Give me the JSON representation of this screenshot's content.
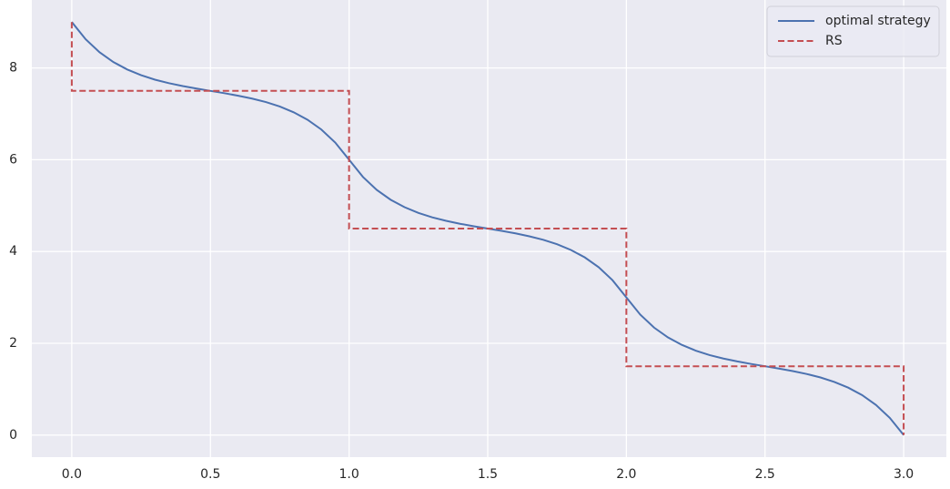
{
  "chart_data": {
    "type": "line",
    "xlim": [
      -0.144,
      3.154
    ],
    "ylim": [
      -0.48,
      9.48
    ],
    "xticks": [
      {
        "value": 0,
        "label": "0.0"
      },
      0.5,
      {
        "value": 1,
        "label": "1.0"
      },
      1.5,
      {
        "value": 2,
        "label": "2.0"
      },
      2.5,
      {
        "value": 3,
        "label": "3.0"
      }
    ],
    "yticks": [
      0,
      2,
      4,
      6,
      8
    ],
    "grid": true,
    "legend": "upper-right",
    "series": [
      {
        "name": "optimal strategy",
        "color": "#4c72b0",
        "dash": false,
        "x": [
          0,
          0.05,
          0.1,
          0.15,
          0.2,
          0.25,
          0.3,
          0.35,
          0.4,
          0.45,
          0.5,
          0.55,
          0.6,
          0.65,
          0.7,
          0.75,
          0.8,
          0.85,
          0.9,
          0.95,
          1,
          1.05,
          1.1,
          1.15,
          1.2,
          1.25,
          1.3,
          1.35,
          1.4,
          1.45,
          1.5,
          1.55,
          1.6,
          1.65,
          1.7,
          1.75,
          1.8,
          1.85,
          1.9,
          1.95,
          2,
          2.05,
          2.1,
          2.15,
          2.2,
          2.25,
          2.3,
          2.35,
          2.4,
          2.45,
          2.5,
          2.55,
          2.6,
          2.65,
          2.7,
          2.75,
          2.8,
          2.85,
          2.9,
          2.95,
          3
        ],
        "values": [
          9,
          8.625,
          8.342,
          8.128,
          7.966,
          7.841,
          7.744,
          7.668,
          7.605,
          7.55,
          7.5,
          7.45,
          7.395,
          7.332,
          7.256,
          7.159,
          7.034,
          6.872,
          6.658,
          6.375,
          6,
          5.625,
          5.342,
          5.128,
          4.966,
          4.841,
          4.744,
          4.668,
          4.605,
          4.55,
          4.5,
          4.45,
          4.395,
          4.332,
          4.256,
          4.159,
          4.034,
          3.872,
          3.658,
          3.375,
          3,
          2.625,
          2.342,
          2.128,
          1.966,
          1.841,
          1.744,
          1.668,
          1.605,
          1.55,
          1.5,
          1.45,
          1.395,
          1.332,
          1.256,
          1.159,
          1.034,
          0.872,
          0.658,
          0.375,
          0
        ]
      },
      {
        "name": "RS",
        "color": "#c44e52",
        "dash": true,
        "x": [
          0,
          0,
          1,
          1,
          2,
          2,
          3,
          3
        ],
        "values": [
          9,
          7.5,
          7.5,
          4.5,
          4.5,
          1.5,
          1.5,
          0
        ]
      }
    ]
  }
}
